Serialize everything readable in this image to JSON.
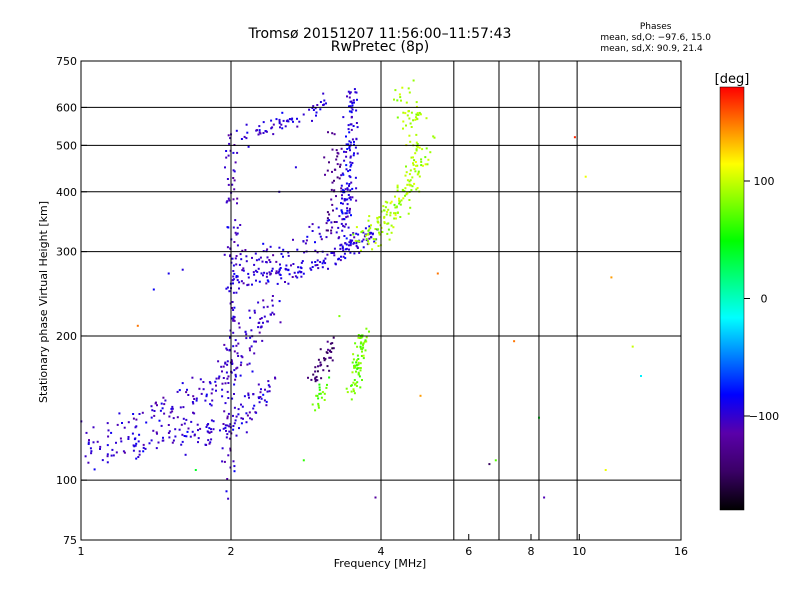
{
  "header": {
    "title_line1": "Tromsø 20151207 11:56:00–11:57:43",
    "title_line2": "RwPretec (8p)",
    "stats_title": "Phases",
    "stats_o": "mean, sd,O: −97.6, 15.0",
    "stats_x": "mean, sd,X:  90.9, 21.4"
  },
  "colorbar": {
    "unit": "[deg]",
    "ticks": [
      {
        "value": 100,
        "label": "100"
      },
      {
        "value": 0,
        "label": "0"
      },
      {
        "value": -100,
        "label": "−100"
      }
    ],
    "range": [
      -180,
      180
    ],
    "colormap": [
      "#000000",
      "#3a0066",
      "#5a00aa",
      "#0000ff",
      "#0080ff",
      "#00ffff",
      "#00ff80",
      "#00ff00",
      "#80ff00",
      "#ffff00",
      "#ff8000",
      "#ff0000"
    ]
  },
  "chart_data": {
    "type": "scatter",
    "xlabel": "Frequency [MHz]",
    "ylabel": "Stationary phase Virtual Height [km]",
    "x_scale": "log",
    "y_scale": "log",
    "xlim": [
      1,
      16
    ],
    "ylim": [
      75,
      750
    ],
    "x_ticks": [
      {
        "value": 1,
        "label": "1"
      },
      {
        "value": 2,
        "label": "2"
      },
      {
        "value": 4,
        "label": "4"
      },
      {
        "value": 6,
        "label": "6"
      },
      {
        "value": 8,
        "label": "8"
      },
      {
        "value": 10,
        "label": "10"
      },
      {
        "value": 16,
        "label": "16"
      }
    ],
    "x_gridlines": [
      2,
      4,
      5.6,
      6.9,
      8.3,
      9.9
    ],
    "y_ticks": [
      {
        "value": 75,
        "label": "75"
      },
      {
        "value": 100,
        "label": "100"
      },
      {
        "value": 200,
        "label": "200"
      },
      {
        "value": 300,
        "label": "300"
      },
      {
        "value": 400,
        "label": "400"
      },
      {
        "value": 500,
        "label": "500"
      },
      {
        "value": 600,
        "label": "600"
      },
      {
        "value": 750,
        "label": "750"
      }
    ],
    "y_gridlines": [
      100,
      200,
      300,
      400,
      500,
      600
    ],
    "grid": true,
    "clusters": [
      {
        "name": "E-region trace",
        "curve": [
          [
            1.0,
            112
          ],
          [
            1.2,
            116
          ],
          [
            1.4,
            120
          ],
          [
            1.6,
            123
          ],
          [
            1.8,
            126
          ],
          [
            2.0,
            130
          ],
          [
            2.2,
            140
          ],
          [
            2.4,
            158
          ]
        ],
        "spread": 0.06,
        "phase_mean": -100,
        "count": 160
      },
      {
        "name": "E-region spread above",
        "curve": [
          [
            1.0,
            122
          ],
          [
            1.25,
            130
          ],
          [
            1.5,
            140
          ],
          [
            1.75,
            150
          ],
          [
            2.0,
            165
          ],
          [
            2.2,
            200
          ],
          [
            2.4,
            240
          ]
        ],
        "spread": 0.09,
        "phase_mean": -102,
        "count": 180
      },
      {
        "name": "vertical at 2 MHz",
        "curve": [
          [
            1.98,
            95
          ],
          [
            2.0,
            150
          ],
          [
            2.02,
            220
          ],
          [
            2.03,
            290
          ],
          [
            2.02,
            380
          ],
          [
            2.0,
            520
          ]
        ],
        "spread": 0.05,
        "phase_mean": -104,
        "count": 120
      },
      {
        "name": "F-region trace",
        "curve": [
          [
            2.0,
            262
          ],
          [
            2.3,
            265
          ],
          [
            2.7,
            272
          ],
          [
            3.0,
            285
          ],
          [
            3.3,
            300
          ],
          [
            3.6,
            315
          ],
          [
            3.9,
            330
          ]
        ],
        "spread": 0.04,
        "phase_mean": -97,
        "count": 160
      },
      {
        "name": "F-region upper",
        "curve": [
          [
            2.0,
            285
          ],
          [
            2.4,
            295
          ],
          [
            2.8,
            310
          ],
          [
            3.2,
            340
          ],
          [
            3.5,
            380
          ]
        ],
        "spread": 0.06,
        "phase_mean": -100,
        "count": 70
      },
      {
        "name": "high-altitude band",
        "curve": [
          [
            2.1,
            520
          ],
          [
            2.4,
            545
          ],
          [
            2.8,
            575
          ],
          [
            3.2,
            620
          ]
        ],
        "spread": 0.04,
        "phase_mean": -98,
        "count": 60
      },
      {
        "name": "vertical at 3.4 MHz",
        "curve": [
          [
            3.35,
            300
          ],
          [
            3.4,
            380
          ],
          [
            3.45,
            460
          ],
          [
            3.5,
            560
          ],
          [
            3.5,
            640
          ]
        ],
        "spread": 0.05,
        "phase_mean": -95,
        "count": 140
      },
      {
        "name": "vertical at 3.2 MHz",
        "curve": [
          [
            3.15,
            330
          ],
          [
            3.2,
            420
          ],
          [
            3.25,
            520
          ]
        ],
        "spread": 0.05,
        "phase_mean": -130,
        "count": 40
      },
      {
        "name": "X-mode F (yellow)",
        "curve": [
          [
            3.7,
            320
          ],
          [
            4.0,
            340
          ],
          [
            4.3,
            370
          ],
          [
            4.6,
            420
          ],
          [
            4.8,
            480
          ],
          [
            4.7,
            560
          ],
          [
            4.4,
            620
          ]
        ],
        "spread": 0.08,
        "phase_mean": 92,
        "count": 200
      },
      {
        "name": "X-mode E (yellow-green)",
        "curve": [
          [
            3.5,
            150
          ],
          [
            3.6,
            170
          ],
          [
            3.65,
            190
          ],
          [
            3.7,
            200
          ]
        ],
        "spread": 0.05,
        "phase_mean": 78,
        "count": 80
      },
      {
        "name": "X-mode small (yellow-green)",
        "curve": [
          [
            3.0,
            145
          ],
          [
            3.1,
            160
          ]
        ],
        "spread": 0.04,
        "phase_mean": 70,
        "count": 20
      },
      {
        "name": "purple small cluster",
        "curve": [
          [
            2.9,
            160
          ],
          [
            3.05,
            175
          ],
          [
            3.2,
            190
          ]
        ],
        "spread": 0.04,
        "phase_mean": -140,
        "count": 40
      }
    ],
    "outliers": [
      [
        1.3,
        210,
        150
      ],
      [
        1.7,
        105,
        40
      ],
      [
        2.8,
        110,
        60
      ],
      [
        3.3,
        220,
        80
      ],
      [
        3.9,
        92,
        -120
      ],
      [
        4.8,
        150,
        140
      ],
      [
        5.2,
        270,
        150
      ],
      [
        6.6,
        108,
        -150
      ],
      [
        6.8,
        110,
        70
      ],
      [
        7.4,
        195,
        150
      ],
      [
        8.5,
        92,
        -110
      ],
      [
        8.3,
        135,
        40
      ],
      [
        9.8,
        520,
        170
      ],
      [
        10.3,
        430,
        110
      ],
      [
        11.6,
        265,
        140
      ],
      [
        11.3,
        105,
        110
      ],
      [
        12.8,
        190,
        100
      ],
      [
        13.3,
        165,
        -20
      ],
      [
        2.5,
        400,
        -100
      ],
      [
        2.7,
        450,
        -95
      ],
      [
        1.5,
        270,
        -90
      ],
      [
        1.6,
        275,
        -95
      ],
      [
        1.4,
        250,
        -85
      ]
    ]
  }
}
